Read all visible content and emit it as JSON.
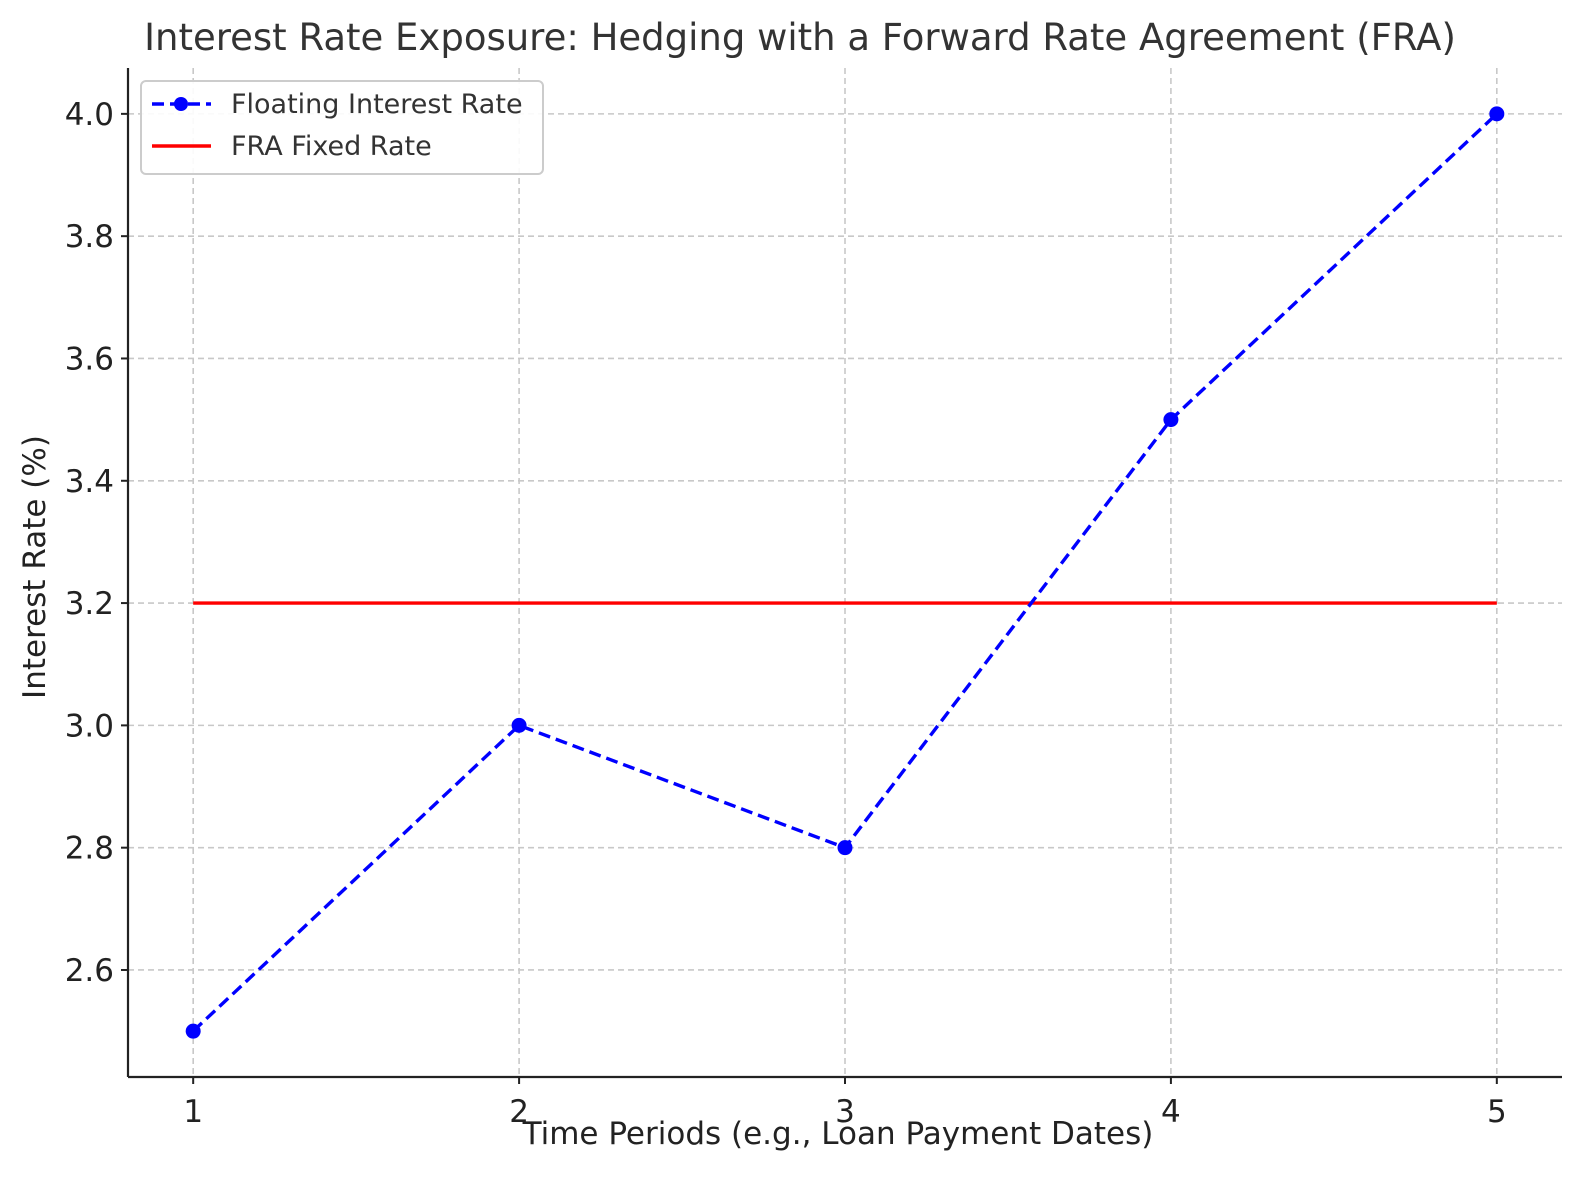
{
  "chart_data": {
    "type": "line",
    "title": "Interest Rate Exposure: Hedging with a Forward Rate Agreement (FRA)",
    "xlabel": "Time Periods (e.g., Loan Payment Dates)",
    "ylabel": "Interest Rate (%)",
    "x": [
      1,
      2,
      3,
      4,
      5
    ],
    "x_tick_labels": [
      "1",
      "2",
      "3",
      "4",
      "5"
    ],
    "y_tick_values": [
      2.6,
      2.8,
      3.0,
      3.2,
      3.4,
      3.6,
      3.8,
      4.0
    ],
    "y_tick_labels": [
      "2.6",
      "2.8",
      "3.0",
      "3.2",
      "3.4",
      "3.6",
      "3.8",
      "4.0"
    ],
    "xlim": [
      0.8,
      5.2
    ],
    "ylim": [
      2.425,
      4.075
    ],
    "grid": true,
    "legend_placement": "top-left",
    "series": [
      {
        "name": "Floating Interest Rate",
        "values": [
          2.5,
          3.0,
          2.8,
          3.5,
          4.0
        ],
        "color": "#0000ff",
        "style": "dashed",
        "marker": "circle"
      },
      {
        "name": "FRA Fixed Rate",
        "values": [
          3.2,
          3.2,
          3.2,
          3.2,
          3.2
        ],
        "color": "#ff0000",
        "style": "solid",
        "marker": "none"
      }
    ]
  }
}
